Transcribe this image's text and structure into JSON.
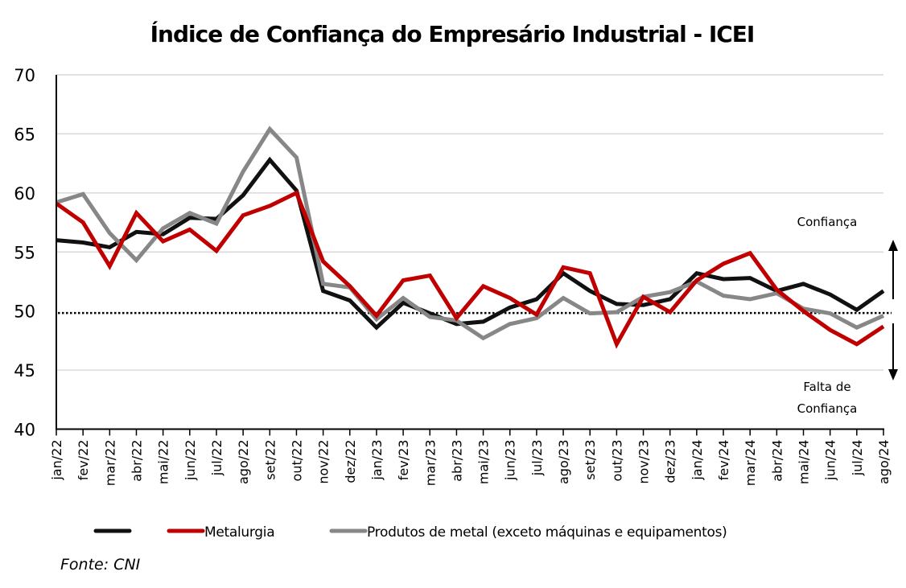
{
  "chart_data": {
    "type": "line",
    "title": "Índice de Confiança do Empresário Industrial - ICEI",
    "xlabel": "",
    "ylabel": "",
    "ylim": [
      40,
      70
    ],
    "yticks": [
      "40",
      "45",
      "50",
      "55",
      "60",
      "65",
      "70"
    ],
    "grid": true,
    "reference_line": {
      "value": 50,
      "style": "dotted"
    },
    "categories": [
      "jan/22",
      "fev/22",
      "mar/22",
      "abr/22",
      "mai/22",
      "jun/22",
      "jul/22",
      "ago/22",
      "set/22",
      "out/22",
      "nov/22",
      "dez/22",
      "jan/23",
      "fev/23",
      "mar/23",
      "abr/23",
      "mai/23",
      "jun/23",
      "jul/23",
      "ago/23",
      "set/23",
      "out/23",
      "nov/23",
      "dez/23",
      "jan/24",
      "fev/24",
      "mar/24",
      "abr/24",
      "mai/24",
      "jun/24",
      "jul/24",
      "ago/24"
    ],
    "series": [
      {
        "name": "",
        "color": "#111111",
        "values": [
          56.0,
          55.8,
          55.4,
          56.7,
          56.5,
          57.9,
          57.8,
          59.8,
          62.8,
          60.2,
          51.7,
          50.9,
          48.6,
          50.7,
          49.8,
          48.9,
          49.1,
          50.3,
          51.0,
          53.2,
          51.7,
          50.6,
          50.5,
          51.0,
          53.2,
          52.7,
          52.8,
          51.7,
          52.3,
          51.4,
          50.1,
          51.7
        ]
      },
      {
        "name": "Metalurgia",
        "color": "#C00000",
        "values": [
          59.1,
          57.5,
          53.8,
          58.3,
          55.9,
          56.9,
          55.1,
          58.1,
          58.9,
          60.0,
          54.2,
          52.1,
          49.6,
          52.6,
          53.0,
          49.4,
          52.1,
          51.1,
          49.7,
          53.7,
          53.2,
          47.2,
          51.2,
          49.9,
          52.6,
          54.0,
          54.9,
          51.8,
          50.0,
          48.4,
          47.2,
          48.7
        ]
      },
      {
        "name": "Produtos de metal (exceto máquinas e equipamentos)",
        "color": "#878787",
        "values": [
          59.2,
          59.9,
          56.6,
          54.3,
          57.0,
          58.3,
          57.4,
          61.8,
          65.4,
          63.0,
          52.3,
          52.0,
          49.3,
          51.1,
          49.5,
          49.2,
          47.7,
          48.9,
          49.4,
          51.1,
          49.8,
          49.9,
          51.2,
          51.6,
          52.5,
          51.3,
          51.0,
          51.5,
          50.2,
          49.8,
          48.6,
          49.6
        ]
      }
    ],
    "annotations": {
      "upper": "Confiança",
      "lower_line1": "Falta de",
      "lower_line2": "Confiança"
    },
    "legend_position": "bottom"
  },
  "source": "Fonte: CNI"
}
